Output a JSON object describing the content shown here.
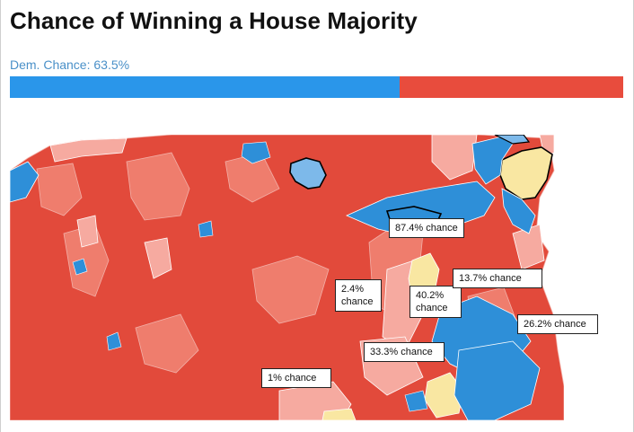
{
  "header": {
    "title": "Chance of Winning a House Majority"
  },
  "probability": {
    "label": "Dem. Chance: 63.5%",
    "dem_fraction": 0.635,
    "dem_color": "#2a96ea",
    "rep_color": "#e84c3d"
  },
  "map": {
    "colors": {
      "strong_rep": "#e24a3b",
      "lean_rep": "#ef7d6d",
      "light_rep": "#f6aaa0",
      "tossup": "#f9e7a2",
      "lean_dem": "#7db9ea",
      "strong_dem": "#2e8fd8"
    },
    "callouts": [
      {
        "id": "c1",
        "text": "87.4% chance"
      },
      {
        "id": "c2",
        "line1": "2.4%",
        "line2": "chance"
      },
      {
        "id": "c3",
        "line1": "40.2%",
        "line2": "chance"
      },
      {
        "id": "c4",
        "text": "13.7% chance"
      },
      {
        "id": "c5",
        "text": "26.2% chance"
      },
      {
        "id": "c6",
        "text": "33.3% chance"
      },
      {
        "id": "c7",
        "text": "1% chance"
      }
    ]
  }
}
